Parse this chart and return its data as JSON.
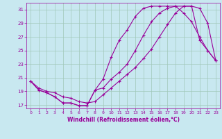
{
  "xlabel": "Windchill (Refroidissement éolien,°C)",
  "bg_color": "#c8e8f0",
  "grid_color": "#a0c8b8",
  "line_color": "#990099",
  "xlim": [
    -0.5,
    23.5
  ],
  "ylim": [
    16.5,
    32.0
  ],
  "xticks": [
    0,
    1,
    2,
    3,
    4,
    5,
    6,
    7,
    8,
    9,
    10,
    11,
    12,
    13,
    14,
    15,
    16,
    17,
    18,
    19,
    20,
    21,
    22,
    23
  ],
  "yticks": [
    17,
    19,
    21,
    23,
    25,
    27,
    29,
    31
  ],
  "line1_x": [
    0,
    1,
    2,
    3,
    4,
    5,
    6,
    7,
    8,
    9,
    10,
    11,
    12,
    13,
    14,
    15,
    16,
    17,
    18,
    19,
    20,
    21,
    22,
    23
  ],
  "line1_y": [
    20.5,
    19.2,
    18.8,
    18.2,
    17.3,
    17.3,
    16.9,
    16.9,
    19.2,
    19.5,
    20.8,
    21.8,
    23.0,
    25.0,
    27.2,
    29.2,
    30.5,
    31.2,
    31.5,
    31.5,
    31.5,
    26.5,
    25.0,
    23.5
  ],
  "line2_x": [
    0,
    1,
    2,
    3,
    4,
    5,
    6,
    7,
    8,
    9,
    10,
    11,
    12,
    13,
    14,
    15,
    16,
    17,
    18,
    19,
    20,
    21,
    22,
    23
  ],
  "line2_y": [
    20.5,
    19.2,
    18.8,
    18.2,
    17.3,
    17.3,
    16.9,
    16.9,
    19.2,
    20.8,
    24.0,
    26.5,
    28.0,
    30.0,
    31.2,
    31.5,
    31.5,
    31.5,
    31.5,
    30.5,
    29.2,
    27.0,
    25.0,
    23.5
  ],
  "line3_x": [
    0,
    1,
    2,
    3,
    4,
    5,
    6,
    7,
    8,
    9,
    10,
    11,
    12,
    13,
    14,
    15,
    16,
    17,
    18,
    19,
    20,
    21,
    22,
    23
  ],
  "line3_y": [
    20.5,
    19.5,
    19.0,
    18.8,
    18.2,
    18.0,
    17.5,
    17.3,
    17.5,
    18.5,
    19.5,
    20.5,
    21.5,
    22.5,
    23.8,
    25.2,
    27.0,
    28.8,
    30.5,
    31.5,
    31.5,
    31.2,
    29.0,
    23.5
  ]
}
